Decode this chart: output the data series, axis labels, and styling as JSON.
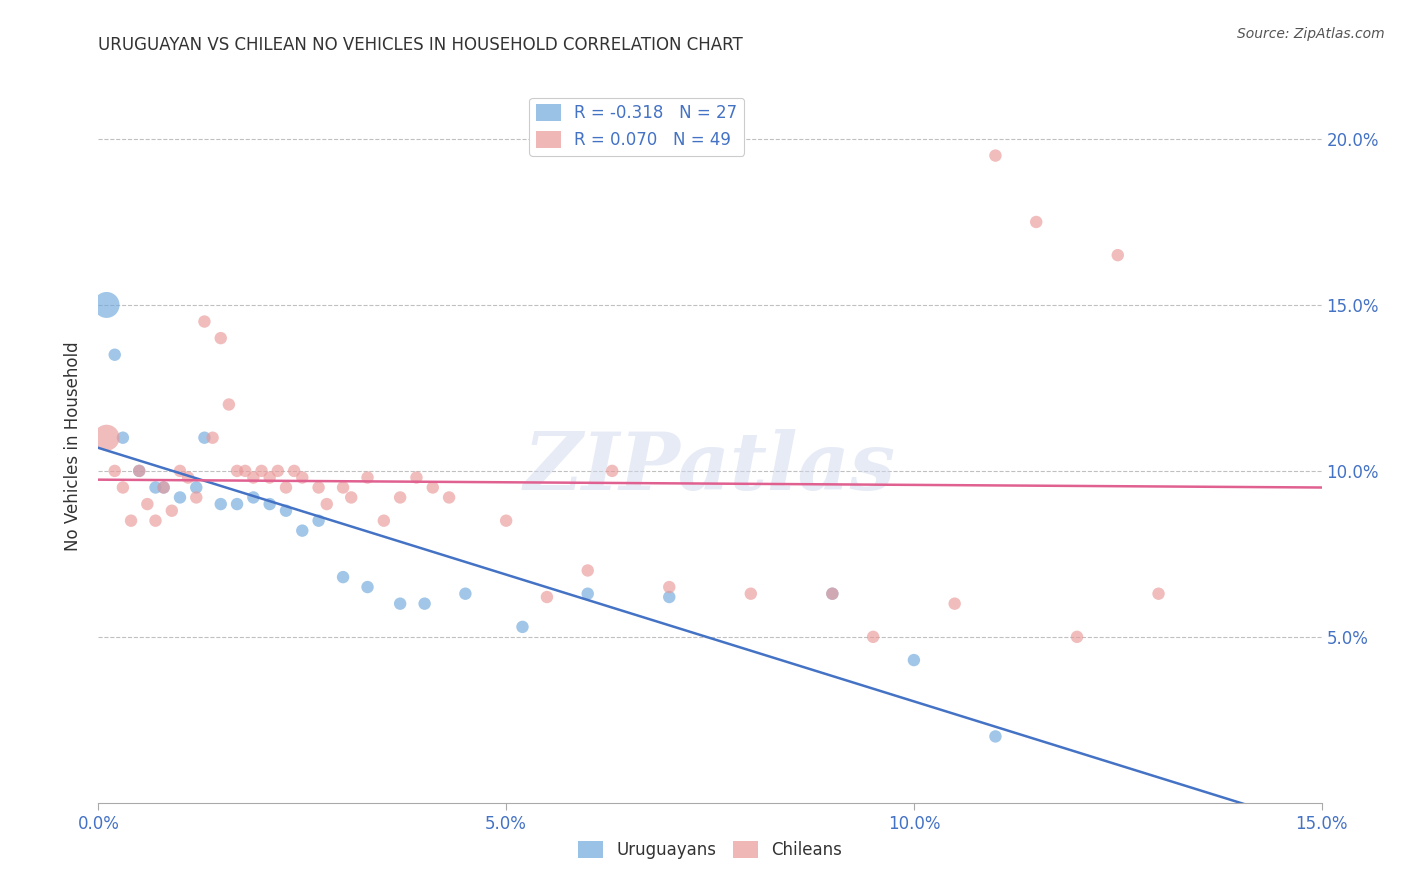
{
  "title": "URUGUAYAN VS CHILEAN NO VEHICLES IN HOUSEHOLD CORRELATION CHART",
  "source": "Source: ZipAtlas.com",
  "ylabel": "No Vehicles in Household",
  "xmin": 0.0,
  "xmax": 0.15,
  "ymin": 0.0,
  "ymax": 0.215,
  "yticks": [
    0.05,
    0.1,
    0.15,
    0.2
  ],
  "ytick_labels": [
    "5.0%",
    "10.0%",
    "15.0%",
    "20.0%"
  ],
  "xticks": [
    0.0,
    0.05,
    0.1,
    0.15
  ],
  "xtick_labels": [
    "0.0%",
    "5.0%",
    "10.0%",
    "15.0%"
  ],
  "uruguayan_color": "#6fa8dc",
  "chilean_color": "#ea9999",
  "trend_blue": "#4472c4",
  "trend_pink": "#e06090",
  "uruguayan_R": -0.318,
  "uruguayan_N": 27,
  "chilean_R": 0.07,
  "chilean_N": 49,
  "background_color": "#ffffff",
  "grid_color": "#c0c0c0",
  "axis_color": "#4472c4",
  "watermark_text": "ZIPatlas",
  "uruguayan_x": [
    0.001,
    0.002,
    0.003,
    0.005,
    0.007,
    0.008,
    0.01,
    0.012,
    0.013,
    0.015,
    0.017,
    0.019,
    0.021,
    0.023,
    0.025,
    0.027,
    0.03,
    0.033,
    0.037,
    0.04,
    0.045,
    0.052,
    0.06,
    0.07,
    0.09,
    0.1,
    0.11
  ],
  "uruguayan_y": [
    0.15,
    0.135,
    0.11,
    0.1,
    0.095,
    0.095,
    0.092,
    0.095,
    0.11,
    0.09,
    0.09,
    0.092,
    0.09,
    0.088,
    0.082,
    0.085,
    0.068,
    0.065,
    0.06,
    0.06,
    0.063,
    0.053,
    0.063,
    0.062,
    0.063,
    0.043,
    0.02
  ],
  "uruguayan_sizes": [
    350,
    80,
    80,
    80,
    80,
    80,
    80,
    80,
    80,
    80,
    80,
    80,
    80,
    80,
    80,
    80,
    80,
    80,
    80,
    80,
    80,
    80,
    80,
    80,
    80,
    80,
    80
  ],
  "chilean_x": [
    0.001,
    0.002,
    0.003,
    0.004,
    0.005,
    0.006,
    0.007,
    0.008,
    0.009,
    0.01,
    0.011,
    0.012,
    0.013,
    0.014,
    0.015,
    0.016,
    0.017,
    0.018,
    0.019,
    0.02,
    0.021,
    0.022,
    0.023,
    0.024,
    0.025,
    0.027,
    0.028,
    0.03,
    0.031,
    0.033,
    0.035,
    0.037,
    0.039,
    0.041,
    0.043,
    0.05,
    0.055,
    0.06,
    0.063,
    0.07,
    0.08,
    0.09,
    0.095,
    0.105,
    0.11,
    0.115,
    0.12,
    0.125,
    0.13
  ],
  "chilean_y": [
    0.11,
    0.1,
    0.095,
    0.085,
    0.1,
    0.09,
    0.085,
    0.095,
    0.088,
    0.1,
    0.098,
    0.092,
    0.145,
    0.11,
    0.14,
    0.12,
    0.1,
    0.1,
    0.098,
    0.1,
    0.098,
    0.1,
    0.095,
    0.1,
    0.098,
    0.095,
    0.09,
    0.095,
    0.092,
    0.098,
    0.085,
    0.092,
    0.098,
    0.095,
    0.092,
    0.085,
    0.062,
    0.07,
    0.1,
    0.065,
    0.063,
    0.063,
    0.05,
    0.06,
    0.195,
    0.175,
    0.05,
    0.165,
    0.063
  ],
  "chilean_sizes": [
    350,
    80,
    80,
    80,
    80,
    80,
    80,
    80,
    80,
    80,
    80,
    80,
    80,
    80,
    80,
    80,
    80,
    80,
    80,
    80,
    80,
    80,
    80,
    80,
    80,
    80,
    80,
    80,
    80,
    80,
    80,
    80,
    80,
    80,
    80,
    80,
    80,
    80,
    80,
    80,
    80,
    80,
    80,
    80,
    80,
    80,
    80,
    80,
    80
  ]
}
